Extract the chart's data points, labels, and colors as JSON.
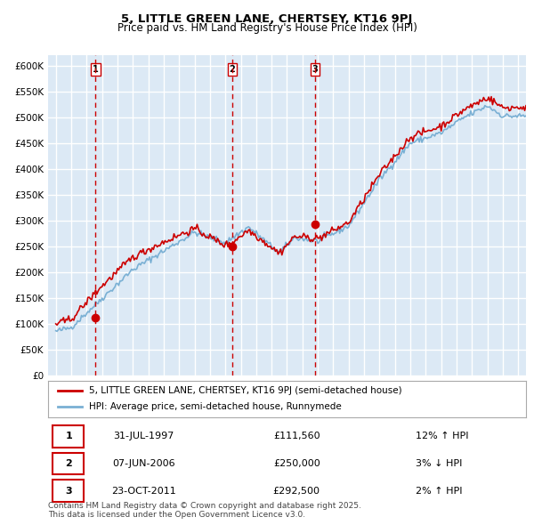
{
  "title_line1": "5, LITTLE GREEN LANE, CHERTSEY, KT16 9PJ",
  "title_line2": "Price paid vs. HM Land Registry's House Price Index (HPI)",
  "xlabel": "",
  "ylabel": "",
  "ylim": [
    0,
    620000
  ],
  "ytick_step": 50000,
  "bg_color": "#dce9f5",
  "plot_bg": "#dce9f5",
  "grid_color": "#ffffff",
  "red_line_color": "#cc0000",
  "blue_line_color": "#7ab0d4",
  "sale_marker_color": "#cc0000",
  "dashed_line_color": "#cc0000",
  "purchases": [
    {
      "date_num": 1997.58,
      "price": 111560,
      "label": "1"
    },
    {
      "date_num": 2006.44,
      "price": 250000,
      "label": "2"
    },
    {
      "date_num": 2011.81,
      "price": 292500,
      "label": "3"
    }
  ],
  "legend_entries": [
    "5, LITTLE GREEN LANE, CHERTSEY, KT16 9PJ (semi-detached house)",
    "HPI: Average price, semi-detached house, Runnymede"
  ],
  "table_rows": [
    {
      "num": "1",
      "date": "31-JUL-1997",
      "price": "£111,560",
      "pct": "12% ↑ HPI"
    },
    {
      "num": "2",
      "date": "07-JUN-2006",
      "price": "£250,000",
      "pct": "3% ↓ HPI"
    },
    {
      "num": "3",
      "date": "23-OCT-2011",
      "price": "£292,500",
      "pct": "2% ↑ HPI"
    }
  ],
  "footer": "Contains HM Land Registry data © Crown copyright and database right 2025.\nThis data is licensed under the Open Government Licence v3.0.",
  "xmin": 1994.5,
  "xmax": 2025.5
}
